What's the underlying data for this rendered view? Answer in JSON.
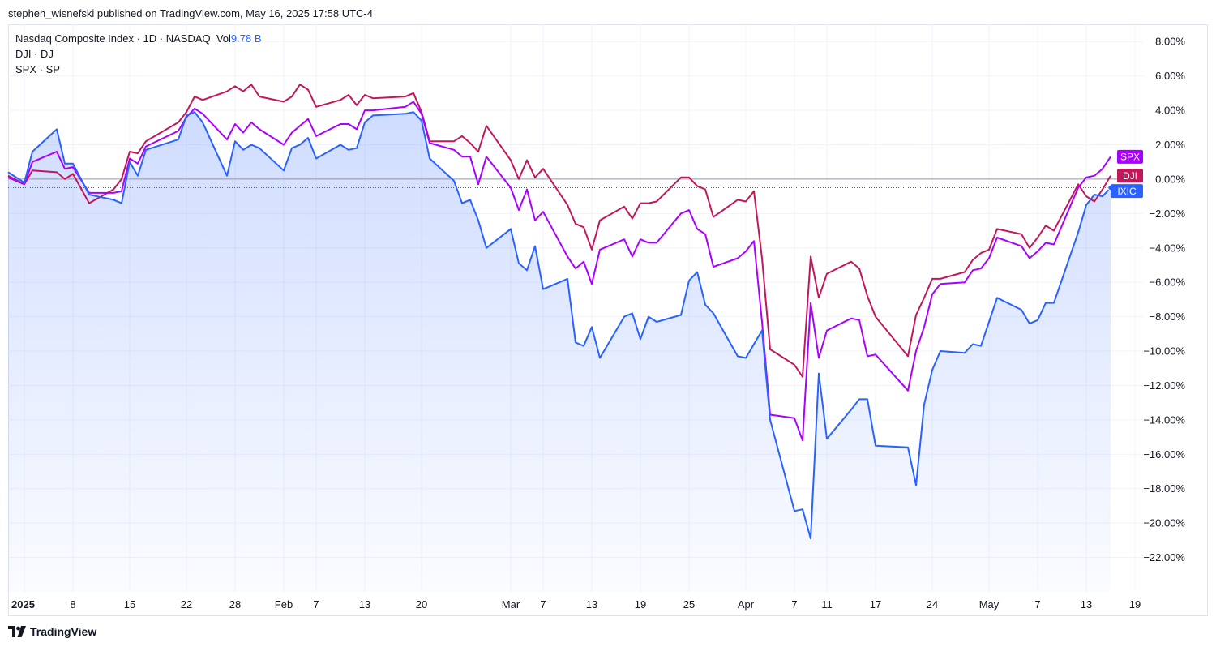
{
  "header": {
    "published": "stephen_wisnefski published on TradingView.com, May 16, 2025 17:58 UTC-4"
  },
  "legend": {
    "line1_main": "Nasdaq Composite Index · 1D · NASDAQ",
    "line1_vol_label": "Vol",
    "line1_vol_value": "9.78 B",
    "line2": "DJI · DJ",
    "line3": "SPX · SP"
  },
  "footer": {
    "brand": "TradingView"
  },
  "colors": {
    "ixic": "#2962ff",
    "dji": "#c2185b",
    "spx": "#aa00ff",
    "grid": "#f0f3fa",
    "zero": "#9598a1"
  },
  "chart_data": {
    "type": "line",
    "ylabel": "",
    "y_unit": "%",
    "ylim": [
      -24,
      9
    ],
    "y_ticks": [
      8,
      6,
      4,
      2,
      0,
      -2,
      -4,
      -6,
      -8,
      -10,
      -12,
      -14,
      -16,
      -18,
      -20,
      -22
    ],
    "y_tick_labels": [
      "8.00%",
      "6.00%",
      "4.00%",
      "2.00%",
      "0.00%",
      "−2.00%",
      "−4.00%",
      "−6.00%",
      "−8.00%",
      "−10.00%",
      "−12.00%",
      "−14.00%",
      "−16.00%",
      "−18.00%",
      "−20.00%",
      "−22.00%"
    ],
    "x": [
      "2024-12-31",
      "2025-01-02",
      "2025-01-03",
      "2025-01-06",
      "2025-01-07",
      "2025-01-08",
      "2025-01-10",
      "2025-01-13",
      "2025-01-14",
      "2025-01-15",
      "2025-01-16",
      "2025-01-17",
      "2025-01-21",
      "2025-01-22",
      "2025-01-23",
      "2025-01-24",
      "2025-01-27",
      "2025-01-28",
      "2025-01-29",
      "2025-01-30",
      "2025-01-31",
      "2025-02-03",
      "2025-02-04",
      "2025-02-05",
      "2025-02-06",
      "2025-02-07",
      "2025-02-10",
      "2025-02-11",
      "2025-02-12",
      "2025-02-13",
      "2025-02-14",
      "2025-02-18",
      "2025-02-19",
      "2025-02-20",
      "2025-02-21",
      "2025-02-24",
      "2025-02-25",
      "2025-02-26",
      "2025-02-27",
      "2025-02-28",
      "2025-03-03",
      "2025-03-04",
      "2025-03-05",
      "2025-03-06",
      "2025-03-07",
      "2025-03-10",
      "2025-03-11",
      "2025-03-12",
      "2025-03-13",
      "2025-03-14",
      "2025-03-17",
      "2025-03-18",
      "2025-03-19",
      "2025-03-20",
      "2025-03-21",
      "2025-03-24",
      "2025-03-25",
      "2025-03-26",
      "2025-03-27",
      "2025-03-28",
      "2025-03-31",
      "2025-04-01",
      "2025-04-02",
      "2025-04-03",
      "2025-04-04",
      "2025-04-07",
      "2025-04-08",
      "2025-04-09",
      "2025-04-10",
      "2025-04-11",
      "2025-04-14",
      "2025-04-15",
      "2025-04-16",
      "2025-04-17",
      "2025-04-21",
      "2025-04-22",
      "2025-04-23",
      "2025-04-24",
      "2025-04-25",
      "2025-04-28",
      "2025-04-29",
      "2025-04-30",
      "2025-05-01",
      "2025-05-02",
      "2025-05-05",
      "2025-05-06",
      "2025-05-07",
      "2025-05-08",
      "2025-05-09",
      "2025-05-12",
      "2025-05-13",
      "2025-05-14",
      "2025-05-15",
      "2025-05-16"
    ],
    "x_ticks": [
      {
        "date": "2025-01-02",
        "label": "2025",
        "bold": true
      },
      {
        "date": "2025-01-08",
        "label": "8"
      },
      {
        "date": "2025-01-15",
        "label": "15"
      },
      {
        "date": "2025-01-22",
        "label": "22"
      },
      {
        "date": "2025-01-28",
        "label": "28"
      },
      {
        "date": "2025-02-03",
        "label": "Feb"
      },
      {
        "date": "2025-02-07",
        "label": "7"
      },
      {
        "date": "2025-02-13",
        "label": "13"
      },
      {
        "date": "2025-02-20",
        "label": "20"
      },
      {
        "date": "2025-03-03",
        "label": "Mar"
      },
      {
        "date": "2025-03-07",
        "label": "7"
      },
      {
        "date": "2025-03-13",
        "label": "13"
      },
      {
        "date": "2025-03-19",
        "label": "19"
      },
      {
        "date": "2025-03-25",
        "label": "25"
      },
      {
        "date": "2025-04-01",
        "label": "Apr"
      },
      {
        "date": "2025-04-07",
        "label": "7"
      },
      {
        "date": "2025-04-11",
        "label": "11"
      },
      {
        "date": "2025-04-17",
        "label": "17"
      },
      {
        "date": "2025-04-24",
        "label": "24"
      },
      {
        "date": "2025-05-01",
        "label": "May"
      },
      {
        "date": "2025-05-07",
        "label": "7"
      },
      {
        "date": "2025-05-13",
        "label": "13"
      },
      {
        "date": "2025-05-19",
        "label": "19"
      }
    ],
    "x_extent": [
      "2024-12-31",
      "2025-05-20"
    ],
    "series": [
      {
        "name": "IXIC",
        "key": "ixic",
        "color": "#2962ff",
        "fill": true,
        "values": [
          0.4,
          -0.2,
          1.6,
          2.9,
          0.9,
          0.9,
          -0.9,
          -1.2,
          -1.4,
          1.0,
          0.2,
          1.7,
          2.3,
          3.7,
          3.9,
          3.3,
          0.2,
          2.2,
          1.7,
          2.0,
          1.8,
          0.5,
          1.8,
          2.0,
          2.4,
          1.2,
          2.0,
          1.7,
          1.8,
          3.3,
          3.7,
          3.8,
          3.9,
          3.4,
          1.2,
          -0.1,
          -1.4,
          -1.2,
          -2.4,
          -4.0,
          -2.9,
          -4.9,
          -5.3,
          -3.9,
          -6.4,
          -5.8,
          -9.5,
          -9.7,
          -8.6,
          -10.4,
          -8.0,
          -7.8,
          -9.3,
          -8.0,
          -8.3,
          -7.9,
          -5.9,
          -5.4,
          -7.3,
          -7.8,
          -10.3,
          -10.4,
          -9.6,
          -8.8,
          -14.0,
          -19.3,
          -19.2,
          -20.9,
          -11.3,
          -15.1,
          -13.4,
          -12.8,
          -12.8,
          -15.5,
          -15.6,
          -17.8,
          -13.1,
          -11.1,
          -10.0,
          -10.1,
          -9.6,
          -9.7,
          -8.3,
          -6.9,
          -7.6,
          -8.4,
          -8.2,
          -7.2,
          -7.2,
          -3.1,
          -1.5,
          -0.9,
          -1.0,
          -0.5
        ]
      },
      {
        "name": "DJI",
        "key": "dji",
        "color": "#c2185b",
        "fill": false,
        "values": [
          0.2,
          -0.3,
          0.5,
          0.4,
          0.0,
          0.3,
          -1.4,
          -0.6,
          0.0,
          1.6,
          1.5,
          2.2,
          3.3,
          3.9,
          4.8,
          4.6,
          5.1,
          5.4,
          5.1,
          5.5,
          4.8,
          4.5,
          4.8,
          5.5,
          5.2,
          4.2,
          4.6,
          4.9,
          4.3,
          4.9,
          4.7,
          4.8,
          5.0,
          3.9,
          2.2,
          2.2,
          2.5,
          2.1,
          1.6,
          3.1,
          1.1,
          0.0,
          1.1,
          0.1,
          0.6,
          -1.5,
          -2.6,
          -2.8,
          -4.1,
          -2.4,
          -1.6,
          -2.3,
          -1.4,
          -1.4,
          -1.3,
          0.1,
          0.1,
          -0.4,
          -0.6,
          -2.2,
          -1.2,
          -1.3,
          -0.7,
          -4.6,
          -9.9,
          -10.8,
          -11.5,
          -4.5,
          -6.9,
          -5.5,
          -4.8,
          -5.2,
          -6.8,
          -8.0,
          -10.3,
          -7.9,
          -6.9,
          -5.8,
          -5.8,
          -5.4,
          -4.7,
          -4.3,
          -4.1,
          -2.9,
          -3.2,
          -4.0,
          -3.4,
          -2.7,
          -3.0,
          -0.3,
          -1.0,
          -1.3,
          -0.6,
          0.2
        ]
      },
      {
        "name": "SPX",
        "key": "spx",
        "color": "#aa00ff",
        "fill": false,
        "values": [
          0.1,
          -0.3,
          1.0,
          1.6,
          0.6,
          0.7,
          -0.8,
          -0.8,
          -0.7,
          1.2,
          0.9,
          1.9,
          2.8,
          3.6,
          4.1,
          3.8,
          2.3,
          3.2,
          2.7,
          3.3,
          2.9,
          2.0,
          2.7,
          3.1,
          3.5,
          2.5,
          3.2,
          3.2,
          2.9,
          4.0,
          4.0,
          4.2,
          4.5,
          3.8,
          2.1,
          1.7,
          1.3,
          1.3,
          -0.3,
          1.3,
          -0.5,
          -1.8,
          -0.6,
          -2.4,
          -1.9,
          -4.5,
          -5.2,
          -4.8,
          -6.1,
          -4.1,
          -3.5,
          -4.5,
          -3.5,
          -3.7,
          -3.7,
          -2.0,
          -1.8,
          -2.9,
          -3.2,
          -5.1,
          -4.6,
          -4.2,
          -3.6,
          -8.3,
          -13.7,
          -13.9,
          -15.2,
          -7.2,
          -10.4,
          -8.8,
          -8.1,
          -8.2,
          -10.3,
          -10.2,
          -12.3,
          -10.0,
          -8.6,
          -6.7,
          -6.1,
          -6.0,
          -5.3,
          -5.2,
          -4.6,
          -3.4,
          -3.9,
          -4.6,
          -4.2,
          -3.7,
          -3.8,
          -0.5,
          0.1,
          0.2,
          0.6,
          1.3
        ]
      }
    ],
    "last_value_tags": [
      {
        "key": "spx",
        "label": "SPX"
      },
      {
        "key": "dji",
        "label": "DJI"
      },
      {
        "key": "ixic",
        "label": "IXIC"
      }
    ]
  }
}
